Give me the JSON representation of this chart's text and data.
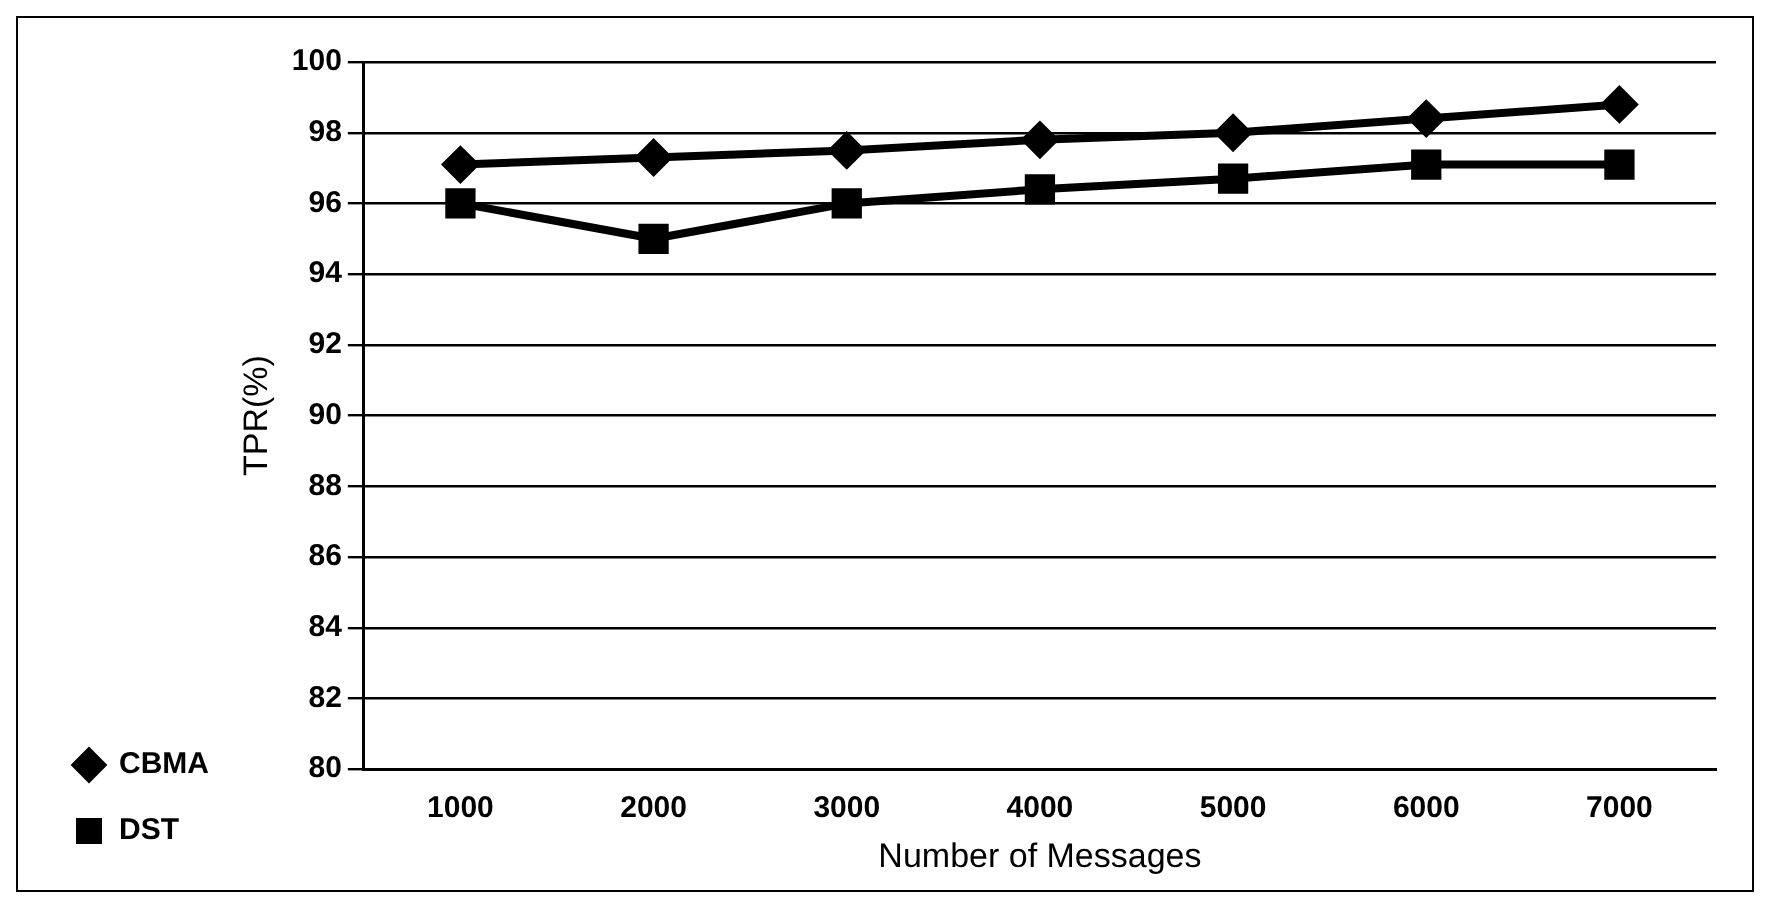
{
  "chart_data": {
    "type": "line",
    "xlabel": "Number of Messages",
    "ylabel": "TPR(%)",
    "categories": [
      "1000",
      "2000",
      "3000",
      "4000",
      "5000",
      "6000",
      "7000"
    ],
    "series": [
      {
        "name": "CBMA",
        "color": "#000000",
        "marker": "diamond",
        "values": [
          97.1,
          97.3,
          97.5,
          97.8,
          98.0,
          98.4,
          98.8
        ]
      },
      {
        "name": "DST",
        "color": "#000000",
        "marker": "square",
        "values": [
          96.0,
          95.0,
          96.0,
          96.4,
          96.7,
          97.1,
          97.1
        ]
      }
    ],
    "ylim": [
      80,
      100
    ],
    "yticks": [
      80,
      82,
      84,
      86,
      88,
      90,
      92,
      94,
      96,
      98,
      100
    ],
    "grid": "y",
    "legend": "left",
    "line_style": "solid"
  }
}
